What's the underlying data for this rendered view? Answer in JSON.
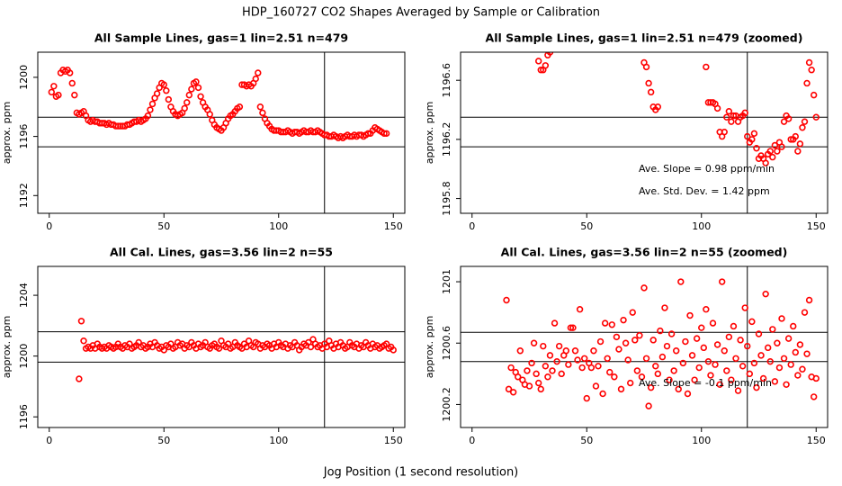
{
  "title": "HDP_160727  CO2 Shapes Averaged by Sample or Calibration",
  "xlabel": "Jog Position (1 second resolution)",
  "chart_data": [
    {
      "type": "scatter",
      "title": "All Sample Lines, gas=1 lin=2.51 n=479",
      "ylabel": "approx. ppm",
      "color": "#ff0000",
      "xlim": [
        -5,
        155
      ],
      "ylim": [
        1190.8,
        1201.7
      ],
      "xticks": [
        0,
        50,
        100,
        150
      ],
      "yticks": [
        1192,
        1196,
        1200
      ],
      "hlines": [
        1197.3,
        1195.3
      ],
      "vline": 120,
      "x": [
        1,
        2,
        3,
        4,
        5,
        6,
        7,
        8,
        9,
        10,
        11,
        12,
        13,
        14,
        15,
        16,
        17,
        18,
        19,
        20,
        21,
        22,
        23,
        24,
        25,
        26,
        27,
        28,
        29,
        30,
        31,
        32,
        33,
        34,
        35,
        36,
        37,
        38,
        39,
        40,
        41,
        42,
        43,
        44,
        45,
        46,
        47,
        48,
        49,
        50,
        51,
        52,
        53,
        54,
        55,
        56,
        57,
        58,
        59,
        60,
        61,
        62,
        63,
        64,
        65,
        66,
        67,
        68,
        69,
        70,
        71,
        72,
        73,
        74,
        75,
        76,
        77,
        78,
        79,
        80,
        81,
        82,
        83,
        84,
        85,
        86,
        87,
        88,
        89,
        90,
        91,
        92,
        93,
        94,
        95,
        96,
        97,
        98,
        99,
        100,
        101,
        102,
        103,
        104,
        105,
        106,
        107,
        108,
        109,
        110,
        111,
        112,
        113,
        114,
        115,
        116,
        117,
        118,
        119,
        120,
        121,
        122,
        123,
        124,
        125,
        126,
        127,
        128,
        129,
        130,
        131,
        132,
        133,
        134,
        135,
        136,
        137,
        138,
        139,
        140,
        141,
        142,
        143,
        144,
        145,
        146,
        147
      ],
      "values": [
        1199.0,
        1199.4,
        1198.7,
        1198.8,
        1200.3,
        1200.5,
        1200.4,
        1200.5,
        1200.3,
        1199.6,
        1198.8,
        1197.6,
        1197.5,
        1197.6,
        1197.7,
        1197.4,
        1197.1,
        1197.0,
        1197.1,
        1197.0,
        1197.0,
        1196.9,
        1196.9,
        1196.9,
        1196.8,
        1196.9,
        1196.8,
        1196.8,
        1196.7,
        1196.7,
        1196.7,
        1196.7,
        1196.7,
        1196.8,
        1196.8,
        1196.9,
        1197.0,
        1197.0,
        1197.1,
        1197.0,
        1197.1,
        1197.2,
        1197.4,
        1197.8,
        1198.2,
        1198.6,
        1198.9,
        1199.3,
        1199.6,
        1199.5,
        1199.1,
        1198.5,
        1198.0,
        1197.7,
        1197.5,
        1197.4,
        1197.5,
        1197.6,
        1197.9,
        1198.3,
        1198.8,
        1199.2,
        1199.6,
        1199.7,
        1199.3,
        1198.7,
        1198.3,
        1198.0,
        1197.8,
        1197.5,
        1197.1,
        1196.8,
        1196.6,
        1196.5,
        1196.4,
        1196.6,
        1196.9,
        1197.2,
        1197.4,
        1197.5,
        1197.7,
        1197.9,
        1198.0,
        1199.5,
        1199.5,
        1199.4,
        1199.5,
        1199.4,
        1199.6,
        1199.9,
        1200.3,
        1198.0,
        1197.6,
        1197.2,
        1196.9,
        1196.7,
        1196.5,
        1196.4,
        1196.4,
        1196.4,
        1196.3,
        1196.3,
        1196.3,
        1196.4,
        1196.3,
        1196.2,
        1196.3,
        1196.3,
        1196.2,
        1196.3,
        1196.4,
        1196.3,
        1196.3,
        1196.4,
        1196.3,
        1196.3,
        1196.4,
        1196.3,
        1196.2,
        1196.1,
        1196.1,
        1196.0,
        1196.0,
        1196.1,
        1196.0,
        1195.9,
        1196.0,
        1195.9,
        1196.0,
        1196.1,
        1196.0,
        1196.0,
        1196.1,
        1196.0,
        1196.1,
        1196.1,
        1196.0,
        1196.1,
        1196.2,
        1196.2,
        1196.4,
        1196.6,
        1196.5,
        1196.4,
        1196.3,
        1196.2,
        1196.2
      ]
    },
    {
      "type": "scatter",
      "title": "All Sample Lines, gas=1 lin=2.51 n=479 (zoomed)",
      "ylabel": "approx. ppm",
      "color": "#ff0000",
      "xlim": [
        -5,
        155
      ],
      "ylim": [
        1195.7,
        1196.79
      ],
      "xticks": [
        0,
        50,
        100,
        150
      ],
      "yticks": [
        1195.8,
        1196.2,
        1196.6
      ],
      "hlines": [
        1196.35,
        1196.15
      ],
      "vline": 120,
      "annotations": [
        "Ave. Slope =  0.98  ppm/min",
        "Ave. Std. Dev. =  1.42  ppm"
      ],
      "x": [
        29,
        30,
        31,
        32,
        33,
        34,
        75,
        76,
        77,
        78,
        79,
        80,
        81,
        102,
        103,
        104,
        105,
        106,
        107,
        108,
        109,
        110,
        111,
        112,
        113,
        114,
        115,
        116,
        117,
        118,
        119,
        120,
        121,
        122,
        123,
        124,
        125,
        126,
        127,
        128,
        129,
        130,
        131,
        132,
        133,
        134,
        135,
        136,
        137,
        138,
        139,
        140,
        141,
        142,
        143,
        144,
        145,
        146,
        147,
        148,
        149,
        150
      ],
      "values": [
        1196.73,
        1196.67,
        1196.67,
        1196.7,
        1196.77,
        1196.79,
        1196.72,
        1196.69,
        1196.58,
        1196.52,
        1196.42,
        1196.4,
        1196.42,
        1196.69,
        1196.45,
        1196.45,
        1196.45,
        1196.44,
        1196.41,
        1196.25,
        1196.22,
        1196.25,
        1196.35,
        1196.39,
        1196.32,
        1196.36,
        1196.36,
        1196.32,
        1196.35,
        1196.36,
        1196.38,
        1196.22,
        1196.18,
        1196.2,
        1196.24,
        1196.14,
        1196.07,
        1196.09,
        1196.07,
        1196.04,
        1196.1,
        1196.12,
        1196.08,
        1196.16,
        1196.12,
        1196.18,
        1196.15,
        1196.32,
        1196.36,
        1196.34,
        1196.2,
        1196.2,
        1196.22,
        1196.12,
        1196.17,
        1196.28,
        1196.32,
        1196.58,
        1196.72,
        1196.67,
        1196.5,
        1196.35
      ]
    },
    {
      "type": "scatter",
      "title": "All Cal. Lines, gas=3.56 lin=2 n=55",
      "ylabel": "approx. ppm",
      "color": "#ff0000",
      "xlim": [
        -5,
        155
      ],
      "ylim": [
        1195.3,
        1205.9
      ],
      "xticks": [
        0,
        50,
        100,
        150
      ],
      "yticks": [
        1196,
        1200,
        1204
      ],
      "hlines": [
        1201.6,
        1199.6
      ],
      "vline": 120,
      "x": [
        13,
        14,
        15,
        16,
        17,
        18,
        19,
        20,
        21,
        22,
        23,
        24,
        25,
        26,
        27,
        28,
        29,
        30,
        31,
        32,
        33,
        34,
        35,
        36,
        37,
        38,
        39,
        40,
        41,
        42,
        43,
        44,
        45,
        46,
        47,
        48,
        49,
        50,
        51,
        52,
        53,
        54,
        55,
        56,
        57,
        58,
        59,
        60,
        61,
        62,
        63,
        64,
        65,
        66,
        67,
        68,
        69,
        70,
        71,
        72,
        73,
        74,
        75,
        76,
        77,
        78,
        79,
        80,
        81,
        82,
        83,
        84,
        85,
        86,
        87,
        88,
        89,
        90,
        91,
        92,
        93,
        94,
        95,
        96,
        97,
        98,
        99,
        100,
        101,
        102,
        103,
        104,
        105,
        106,
        107,
        108,
        109,
        110,
        111,
        112,
        113,
        114,
        115,
        116,
        117,
        118,
        119,
        120,
        121,
        122,
        123,
        124,
        125,
        126,
        127,
        128,
        129,
        130,
        131,
        132,
        133,
        134,
        135,
        136,
        137,
        138,
        139,
        140,
        141,
        142,
        143,
        144,
        145,
        146,
        147,
        148,
        149,
        150
      ],
      "values": [
        1198.5,
        1202.3,
        1201.0,
        1200.5,
        1200.6,
        1200.5,
        1200.7,
        1200.5,
        1200.8,
        1200.6,
        1200.5,
        1200.6,
        1200.5,
        1200.7,
        1200.6,
        1200.5,
        1200.6,
        1200.8,
        1200.6,
        1200.5,
        1200.7,
        1200.6,
        1200.8,
        1200.5,
        1200.6,
        1200.7,
        1200.9,
        1200.6,
        1200.7,
        1200.5,
        1200.6,
        1200.8,
        1200.6,
        1200.9,
        1200.7,
        1200.5,
        1200.6,
        1200.4,
        1200.7,
        1200.6,
        1200.8,
        1200.5,
        1200.6,
        1200.9,
        1200.7,
        1200.8,
        1200.5,
        1200.7,
        1200.6,
        1200.9,
        1200.7,
        1200.5,
        1200.8,
        1200.6,
        1200.7,
        1200.9,
        1200.6,
        1200.5,
        1200.7,
        1200.8,
        1200.6,
        1200.5,
        1201.0,
        1200.7,
        1200.6,
        1200.8,
        1200.5,
        1200.6,
        1200.9,
        1200.7,
        1200.6,
        1200.5,
        1200.8,
        1200.6,
        1201.0,
        1200.7,
        1200.6,
        1200.9,
        1200.8,
        1200.5,
        1200.7,
        1200.6,
        1200.8,
        1200.7,
        1200.5,
        1200.8,
        1200.6,
        1200.9,
        1200.7,
        1200.6,
        1200.8,
        1200.5,
        1200.7,
        1200.6,
        1200.9,
        1200.7,
        1200.4,
        1200.6,
        1200.8,
        1200.7,
        1200.9,
        1200.6,
        1201.1,
        1200.8,
        1200.6,
        1200.7,
        1200.5,
        1200.8,
        1200.6,
        1201.0,
        1200.7,
        1200.5,
        1200.8,
        1200.6,
        1200.9,
        1200.7,
        1200.5,
        1200.6,
        1200.9,
        1200.7,
        1200.6,
        1200.8,
        1200.5,
        1200.7,
        1200.6,
        1200.9,
        1200.7,
        1200.5,
        1200.8,
        1200.6,
        1200.7,
        1200.5,
        1200.6,
        1200.7,
        1200.8,
        1200.5,
        1200.6,
        1200.4
      ]
    },
    {
      "type": "scatter",
      "title": "All Cal. Lines, gas=3.56 lin=2 n=55 (zoomed)",
      "ylabel": "approx. ppm",
      "color": "#ff0000",
      "xlim": [
        -5,
        155
      ],
      "ylim": [
        1200.05,
        1201.1
      ],
      "xticks": [
        0,
        50,
        100,
        150
      ],
      "yticks": [
        1200.2,
        1200.6,
        1201.0
      ],
      "hlines": [
        1200.67,
        1200.48
      ],
      "vline": 120,
      "annotations": [
        "Ave. Slope =  -0.1  ppm/min"
      ],
      "x": [
        15,
        16,
        17,
        18,
        19,
        20,
        21,
        22,
        23,
        24,
        25,
        26,
        27,
        28,
        29,
        30,
        31,
        32,
        33,
        34,
        35,
        36,
        37,
        38,
        39,
        40,
        41,
        42,
        43,
        44,
        45,
        46,
        47,
        48,
        49,
        50,
        51,
        52,
        53,
        54,
        55,
        56,
        57,
        58,
        59,
        60,
        61,
        62,
        63,
        64,
        65,
        66,
        67,
        68,
        69,
        70,
        71,
        72,
        73,
        74,
        75,
        76,
        77,
        78,
        79,
        80,
        81,
        82,
        83,
        84,
        85,
        86,
        87,
        88,
        89,
        90,
        91,
        92,
        93,
        94,
        95,
        96,
        97,
        98,
        99,
        100,
        101,
        102,
        103,
        104,
        105,
        106,
        107,
        108,
        109,
        110,
        111,
        112,
        113,
        114,
        115,
        116,
        117,
        118,
        119,
        120,
        121,
        122,
        123,
        124,
        125,
        126,
        127,
        128,
        129,
        130,
        131,
        132,
        133,
        134,
        135,
        136,
        137,
        138,
        139,
        140,
        141,
        142,
        143,
        144,
        145,
        146,
        147,
        148,
        149,
        150
      ],
      "values": [
        1200.88,
        1200.3,
        1200.44,
        1200.28,
        1200.41,
        1200.38,
        1200.55,
        1200.36,
        1200.33,
        1200.42,
        1200.32,
        1200.47,
        1200.6,
        1200.4,
        1200.34,
        1200.3,
        1200.58,
        1200.45,
        1200.38,
        1200.52,
        1200.42,
        1200.73,
        1200.48,
        1200.58,
        1200.4,
        1200.52,
        1200.55,
        1200.46,
        1200.7,
        1200.7,
        1200.55,
        1200.49,
        1200.82,
        1200.44,
        1200.5,
        1200.24,
        1200.47,
        1200.44,
        1200.55,
        1200.32,
        1200.45,
        1200.61,
        1200.27,
        1200.73,
        1200.5,
        1200.41,
        1200.72,
        1200.38,
        1200.64,
        1200.56,
        1200.3,
        1200.75,
        1200.6,
        1200.49,
        1200.34,
        1200.8,
        1200.62,
        1200.42,
        1200.65,
        1200.38,
        1200.96,
        1200.5,
        1200.19,
        1200.31,
        1200.62,
        1200.45,
        1200.4,
        1200.68,
        1200.51,
        1200.83,
        1200.58,
        1200.36,
        1200.66,
        1200.42,
        1200.55,
        1200.3,
        1201.0,
        1200.47,
        1200.61,
        1200.27,
        1200.78,
        1200.52,
        1200.36,
        1200.63,
        1200.44,
        1200.7,
        1200.57,
        1200.82,
        1200.48,
        1200.39,
        1200.73,
        1200.46,
        1200.59,
        1200.33,
        1201.0,
        1200.55,
        1200.42,
        1200.64,
        1200.36,
        1200.71,
        1200.5,
        1200.29,
        1200.62,
        1200.45,
        1200.83,
        1200.58,
        1200.4,
        1200.74,
        1200.47,
        1200.31,
        1200.66,
        1200.52,
        1200.37,
        1200.92,
        1200.57,
        1200.48,
        1200.69,
        1200.35,
        1200.6,
        1200.44,
        1200.76,
        1200.5,
        1200.33,
        1200.63,
        1200.46,
        1200.71,
        1200.54,
        1200.39,
        1200.59,
        1200.43,
        1200.8,
        1200.53,
        1200.88,
        1200.38,
        1200.25,
        1200.37
      ]
    }
  ]
}
